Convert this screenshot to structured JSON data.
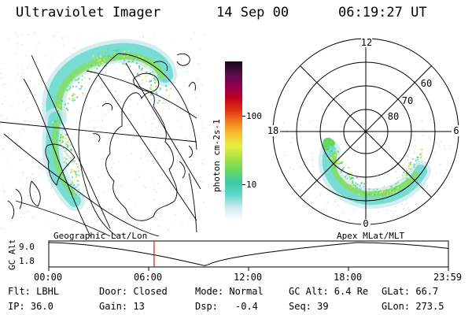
{
  "header": {
    "title": "Ultraviolet Imager",
    "date": "14 Sep 00",
    "time": "06:19:27 UT"
  },
  "colorbar": {
    "unit_label": "photon cm-2s-1",
    "tick_100": "100",
    "tick_10": "10",
    "stops": [
      "#fdfdfd",
      "#c8e8ee",
      "#60d8cc",
      "#3cc8a8",
      "#66d860",
      "#a8e040",
      "#e8f040",
      "#f8c030",
      "#f08020",
      "#e03010",
      "#c00020",
      "#900050",
      "#501048",
      "#180818"
    ]
  },
  "polar_plot": {
    "label_12": "12",
    "label_6": "6",
    "label_18": "18",
    "label_0": "0",
    "label_60": "60",
    "label_70": "70",
    "label_80": "80"
  },
  "timeline": {
    "left_caption": "Geographic Lat/Lon",
    "right_caption": "Apex MLat/MLT",
    "ylabel": "GC Alt",
    "y_top": "9.0",
    "y_bottom": "1.8",
    "x_ticks": [
      "00:00",
      "06:00",
      "12:00",
      "18:00",
      "23:59"
    ],
    "marker_fraction": 0.2635,
    "marker_color": "#e01010"
  },
  "info": {
    "flt": "Flt: LBHL",
    "ip": "IP: 36.0",
    "door": "Door: Closed",
    "gain": "Gain: 13",
    "mode": "Mode: Normal",
    "dsp_label": "Dsp:",
    "dsp_value": "-0.4",
    "gc_alt": "GC Alt: 6.4 Re",
    "seq": "Seq: 39",
    "glat": "GLat: 66.7",
    "glon": "GLon: 273.5"
  }
}
